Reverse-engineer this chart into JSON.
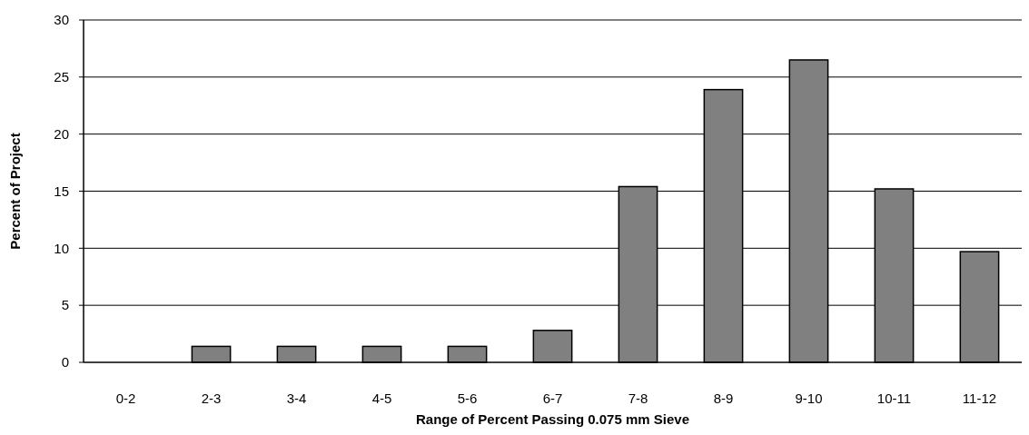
{
  "chart_data": {
    "type": "bar",
    "xlabel": "Range of Percent Passing 0.075 mm Sieve",
    "ylabel": "Percent of Project",
    "categories": [
      "0-2",
      "2-3",
      "3-4",
      "4-5",
      "5-6",
      "6-7",
      "7-8",
      "8-9",
      "9-10",
      "10-11",
      "11-12"
    ],
    "values": [
      0,
      1.4,
      1.4,
      1.4,
      1.4,
      2.8,
      15.4,
      23.9,
      26.5,
      15.2,
      9.7
    ],
    "color": "#808080",
    "ylim": [
      0,
      30
    ],
    "yticks": [
      0,
      5,
      10,
      15,
      20,
      25,
      30
    ],
    "grid": "y"
  }
}
